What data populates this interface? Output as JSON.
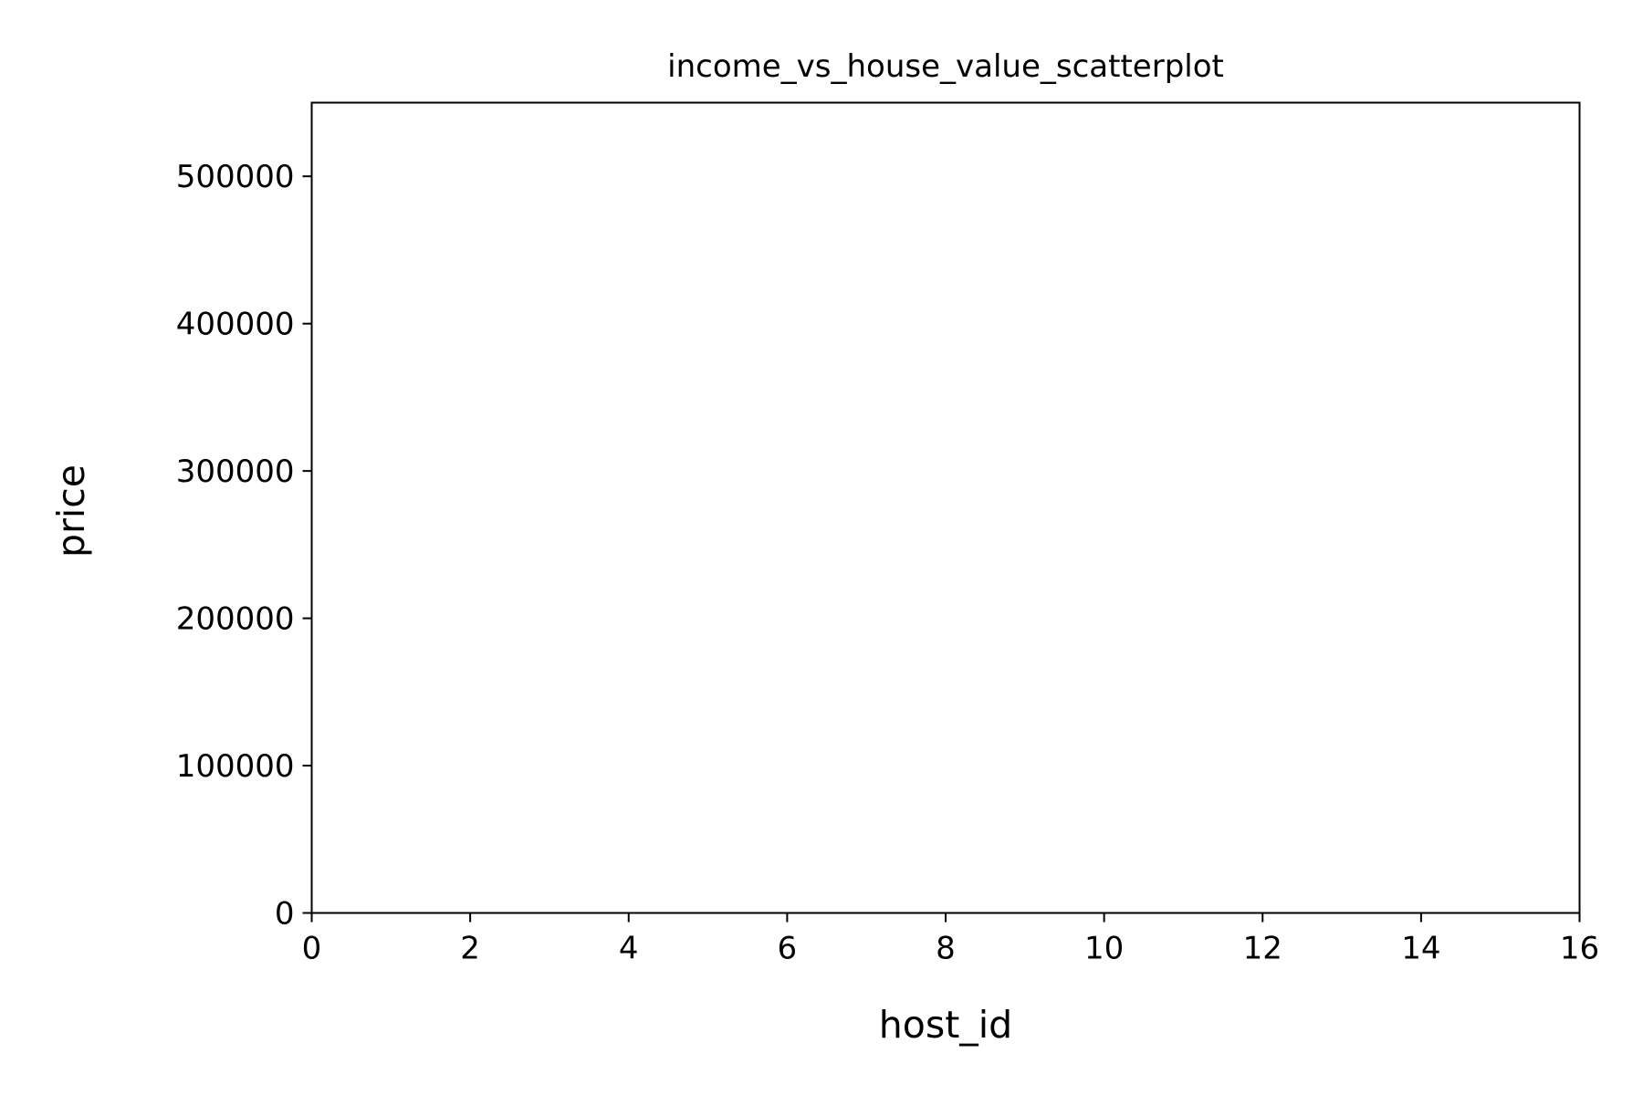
{
  "chart_data": {
    "type": "scatter",
    "title": "income_vs_house_value_scatterplot",
    "xlabel": "host_id",
    "ylabel": "price",
    "xlim": [
      0,
      16
    ],
    "ylim": [
      0,
      550000
    ],
    "x_ticks": [
      0,
      2,
      4,
      6,
      8,
      10,
      12,
      14,
      16
    ],
    "y_ticks": [
      0,
      100000,
      200000,
      300000,
      400000,
      500000
    ],
    "x_tick_labels": [
      "0",
      "2",
      "4",
      "6",
      "8",
      "10",
      "12",
      "14",
      "16"
    ],
    "y_tick_labels": [
      "0",
      "100000",
      "200000",
      "300000",
      "400000",
      "500000"
    ],
    "grid": false,
    "series": [
      {
        "x": [],
        "y": []
      }
    ]
  }
}
